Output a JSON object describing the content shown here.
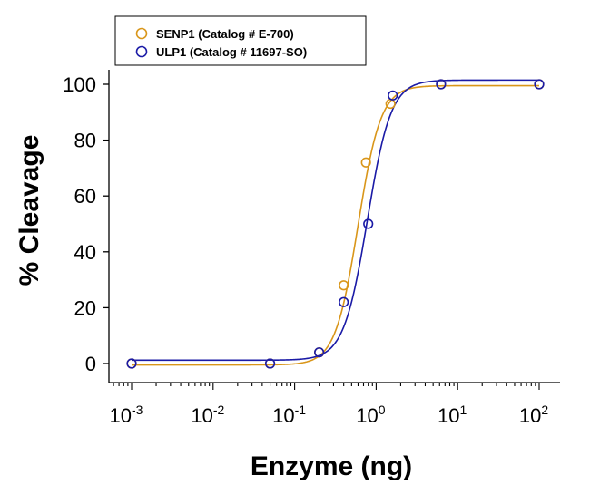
{
  "chart_data": {
    "type": "scatter",
    "title": "",
    "xlabel": "Enzyme (ng)",
    "ylabel": "% Cleavage",
    "xscale": "log",
    "xlim": [
      0.0005,
      300
    ],
    "ylim": [
      -5,
      105
    ],
    "x_ticks": [
      {
        "value": 0.001,
        "base": "10",
        "exp": "-3"
      },
      {
        "value": 0.01,
        "base": "10",
        "exp": "-2"
      },
      {
        "value": 0.1,
        "base": "10",
        "exp": "-1"
      },
      {
        "value": 1,
        "base": "10",
        "exp": "0"
      },
      {
        "value": 10,
        "base": "10",
        "exp": "1"
      },
      {
        "value": 100,
        "base": "10",
        "exp": "2"
      }
    ],
    "y_ticks": [
      "0",
      "20",
      "40",
      "60",
      "80",
      "100"
    ],
    "grid": false,
    "legend_position": "top-center",
    "series": [
      {
        "name": "SENP1 (Catalog # E-700)",
        "color": "#d9961a",
        "marker": "open-circle",
        "x": [
          0.001,
          0.05,
          0.2,
          0.4,
          0.75,
          1.5,
          6.25,
          100
        ],
        "y": [
          0,
          0,
          4,
          28,
          72,
          93,
          100,
          100
        ],
        "fit": {
          "bottom": -0.5,
          "top": 99.5,
          "ec50": 0.6,
          "hill": 3.1
        }
      },
      {
        "name": "ULP1 (Catalog # 11697-SO)",
        "color": "#1a1aa6",
        "marker": "open-circle",
        "x": [
          0.001,
          0.05,
          0.2,
          0.4,
          0.8,
          1.6,
          6.25,
          100
        ],
        "y": [
          0,
          0,
          4,
          22,
          50,
          96,
          100,
          100
        ],
        "fit": {
          "bottom": 1.2,
          "top": 101.5,
          "ec50": 0.78,
          "hill": 3.0
        }
      }
    ]
  }
}
